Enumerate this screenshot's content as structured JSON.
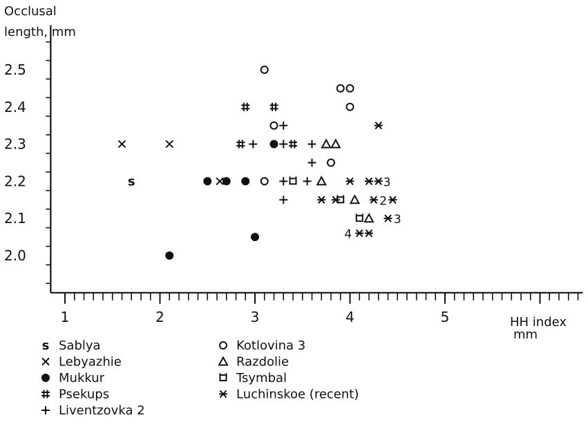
{
  "chart_data": {
    "type": "scatter",
    "ylabel_line1": "Occlusal",
    "ylabel_line2": "length,  mm",
    "xlabel_line1": "HH index",
    "xlabel_line2": "mm",
    "xlim": [
      0.85,
      6.45
    ],
    "ylim": [
      1.9,
      2.62
    ],
    "xticks_major": [
      1,
      2,
      3,
      4,
      5
    ],
    "yticks_major": [
      2.0,
      2.1,
      2.2,
      2.3,
      2.4,
      2.5
    ],
    "x_tick_labels": [
      "1",
      "2",
      "3",
      "4",
      "5"
    ],
    "y_tick_labels": [
      "2.0",
      "2.1",
      "2.2",
      "2.3",
      "2.4",
      "2.5"
    ],
    "series": [
      {
        "name": "Sablya",
        "marker": "s",
        "points": [
          {
            "x": 1.7,
            "y": 2.2
          }
        ]
      },
      {
        "name": "Lebyazhie",
        "marker": "x",
        "points": [
          {
            "x": 1.6,
            "y": 2.3
          },
          {
            "x": 2.1,
            "y": 2.3
          },
          {
            "x": 2.63,
            "y": 2.2
          }
        ]
      },
      {
        "name": "Mukkur",
        "marker": "dot",
        "points": [
          {
            "x": 2.1,
            "y": 2.0
          },
          {
            "x": 2.5,
            "y": 2.2
          },
          {
            "x": 2.7,
            "y": 2.2
          },
          {
            "x": 2.9,
            "y": 2.2
          },
          {
            "x": 3.0,
            "y": 2.05
          },
          {
            "x": 3.2,
            "y": 2.3
          }
        ]
      },
      {
        "name": "Psekups",
        "marker": "hash",
        "points": [
          {
            "x": 2.9,
            "y": 2.4
          },
          {
            "x": 3.2,
            "y": 2.4
          },
          {
            "x": 2.85,
            "y": 2.3
          },
          {
            "x": 3.4,
            "y": 2.3
          }
        ]
      },
      {
        "name": "Liventzovka 2",
        "marker": "plus",
        "points": [
          {
            "x": 2.98,
            "y": 2.3
          },
          {
            "x": 3.3,
            "y": 2.35
          },
          {
            "x": 3.3,
            "y": 2.3
          },
          {
            "x": 3.6,
            "y": 2.3
          },
          {
            "x": 3.6,
            "y": 2.25
          },
          {
            "x": 3.3,
            "y": 2.2
          },
          {
            "x": 3.55,
            "y": 2.2
          },
          {
            "x": 3.3,
            "y": 2.15
          }
        ]
      },
      {
        "name": "Kotlovina 3",
        "marker": "circle",
        "points": [
          {
            "x": 3.1,
            "y": 2.5
          },
          {
            "x": 3.9,
            "y": 2.45
          },
          {
            "x": 4.0,
            "y": 2.45
          },
          {
            "x": 4.0,
            "y": 2.4
          },
          {
            "x": 3.2,
            "y": 2.35
          },
          {
            "x": 3.8,
            "y": 2.25
          },
          {
            "x": 3.1,
            "y": 2.2
          }
        ]
      },
      {
        "name": "Razdolie",
        "marker": "triangle",
        "points": [
          {
            "x": 3.75,
            "y": 2.3
          },
          {
            "x": 3.85,
            "y": 2.3
          },
          {
            "x": 3.7,
            "y": 2.2
          },
          {
            "x": 4.05,
            "y": 2.15
          },
          {
            "x": 4.2,
            "y": 2.1
          }
        ]
      },
      {
        "name": "Tsymbal",
        "marker": "square",
        "points": [
          {
            "x": 3.4,
            "y": 2.2
          },
          {
            "x": 3.9,
            "y": 2.15
          },
          {
            "x": 4.1,
            "y": 2.1
          }
        ]
      },
      {
        "name": "Luchinskoe  (recent)",
        "marker": "asterisk",
        "points": [
          {
            "x": 4.3,
            "y": 2.35
          },
          {
            "x": 4.0,
            "y": 2.2
          },
          {
            "x": 4.2,
            "y": 2.2
          },
          {
            "x": 4.3,
            "y": 2.2
          },
          {
            "x": 3.7,
            "y": 2.15
          },
          {
            "x": 3.85,
            "y": 2.15
          },
          {
            "x": 4.25,
            "y": 2.15
          },
          {
            "x": 4.45,
            "y": 2.15
          },
          {
            "x": 4.4,
            "y": 2.1
          },
          {
            "x": 4.1,
            "y": 2.06
          },
          {
            "x": 4.2,
            "y": 2.06
          }
        ]
      }
    ],
    "point_labels": [
      {
        "text": "3",
        "x": 4.39,
        "y": 2.2
      },
      {
        "text": "2",
        "x": 4.35,
        "y": 2.15
      },
      {
        "text": "3",
        "x": 4.5,
        "y": 2.1
      },
      {
        "text": "4",
        "x": 3.98,
        "y": 2.06
      }
    ],
    "legend": {
      "placement": "bottom",
      "columns": [
        [
          {
            "marker": "s",
            "label": "Sablya"
          },
          {
            "marker": "x",
            "label": "Lebyazhie"
          },
          {
            "marker": "dot",
            "label": "Mukkur"
          },
          {
            "marker": "hash",
            "label": "Psekups"
          },
          {
            "marker": "plus",
            "label": "Liventzovka 2"
          }
        ],
        [
          {
            "marker": "circle",
            "label": "Kotlovina 3"
          },
          {
            "marker": "triangle",
            "label": "Razdolie"
          },
          {
            "marker": "square",
            "label": "Tsymbal"
          },
          {
            "marker": "asterisk",
            "label": "Luchinskoe  (recent)"
          }
        ]
      ]
    }
  }
}
